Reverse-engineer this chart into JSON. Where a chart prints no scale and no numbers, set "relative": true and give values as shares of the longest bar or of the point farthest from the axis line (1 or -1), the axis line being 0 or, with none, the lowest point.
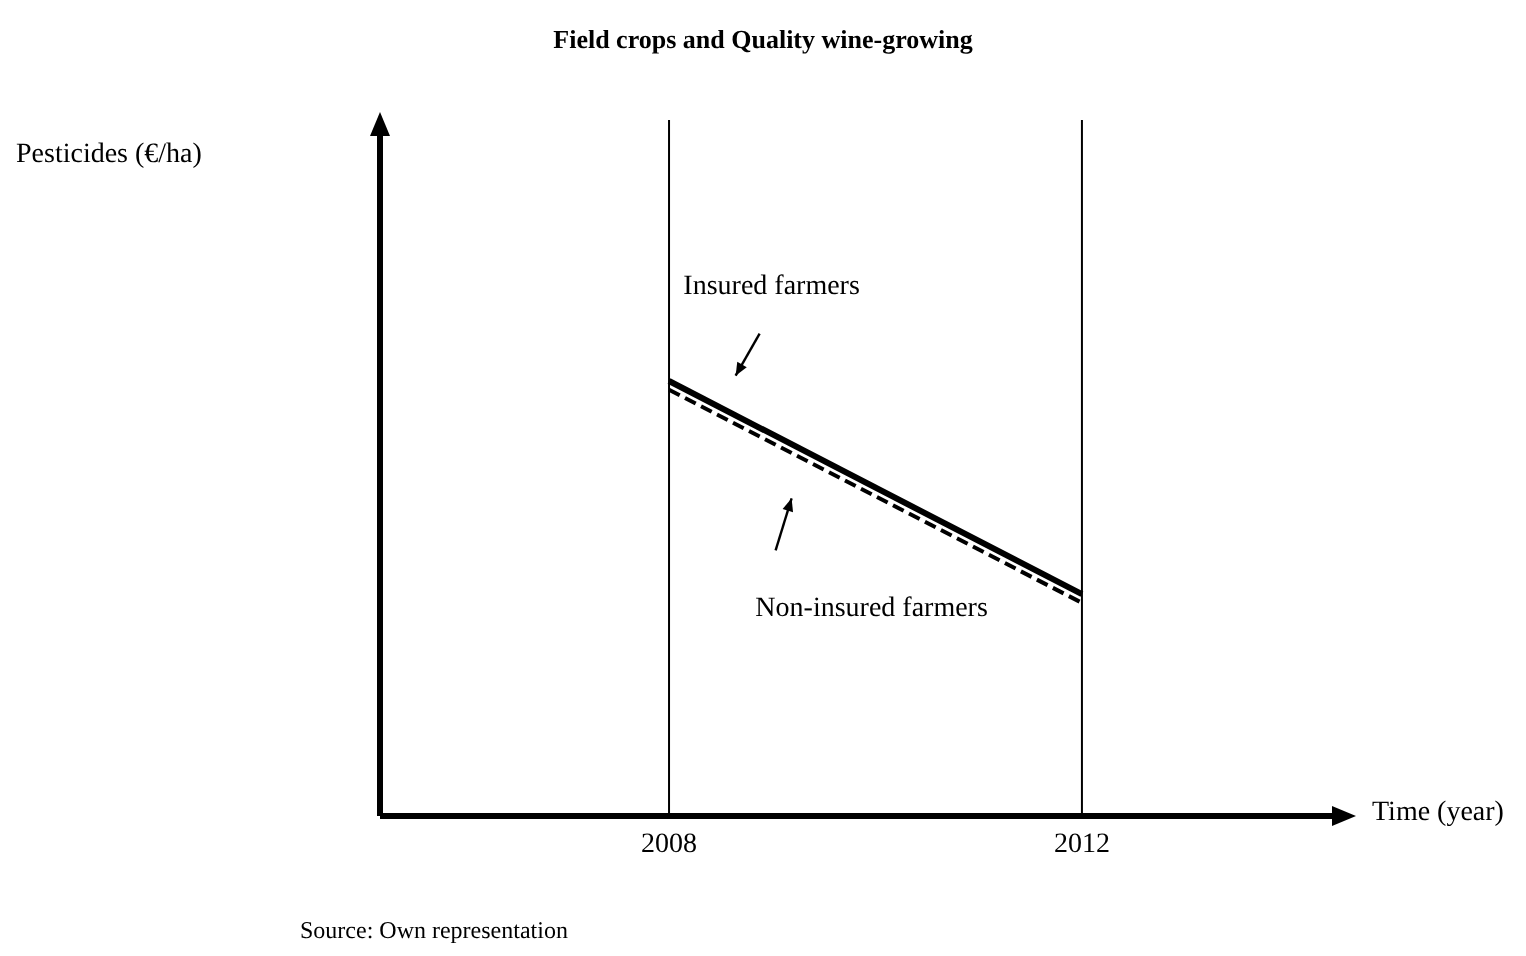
{
  "chart_data": {
    "type": "line",
    "title": "Field crops and Quality wine-growing",
    "xlabel": "Time (year)",
    "annotations": [
      "Source: Own representation",
      "Pesticides (€/ha)"
    ],
    "x": [
      2008,
      2012
    ],
    "xlim": [
      2005.2,
      2014.5
    ],
    "xticks": [
      2008,
      2012
    ],
    "relative": true,
    "legend": false,
    "grid": false,
    "marker": "none",
    "ref_lines": [
      {
        "axis": "x",
        "value": 2008,
        "color": "#000000"
      },
      {
        "axis": "x",
        "value": 2012,
        "color": "#000000"
      }
    ],
    "series": [
      {
        "name": "Insured farmers",
        "color": "#000000",
        "line_style": "solid",
        "values": [
          1,
          0.51
        ]
      },
      {
        "name": "Non-insured farmers",
        "color": "#000000",
        "line_style": "dashed",
        "values": [
          0.98,
          0.49
        ]
      }
    ]
  }
}
